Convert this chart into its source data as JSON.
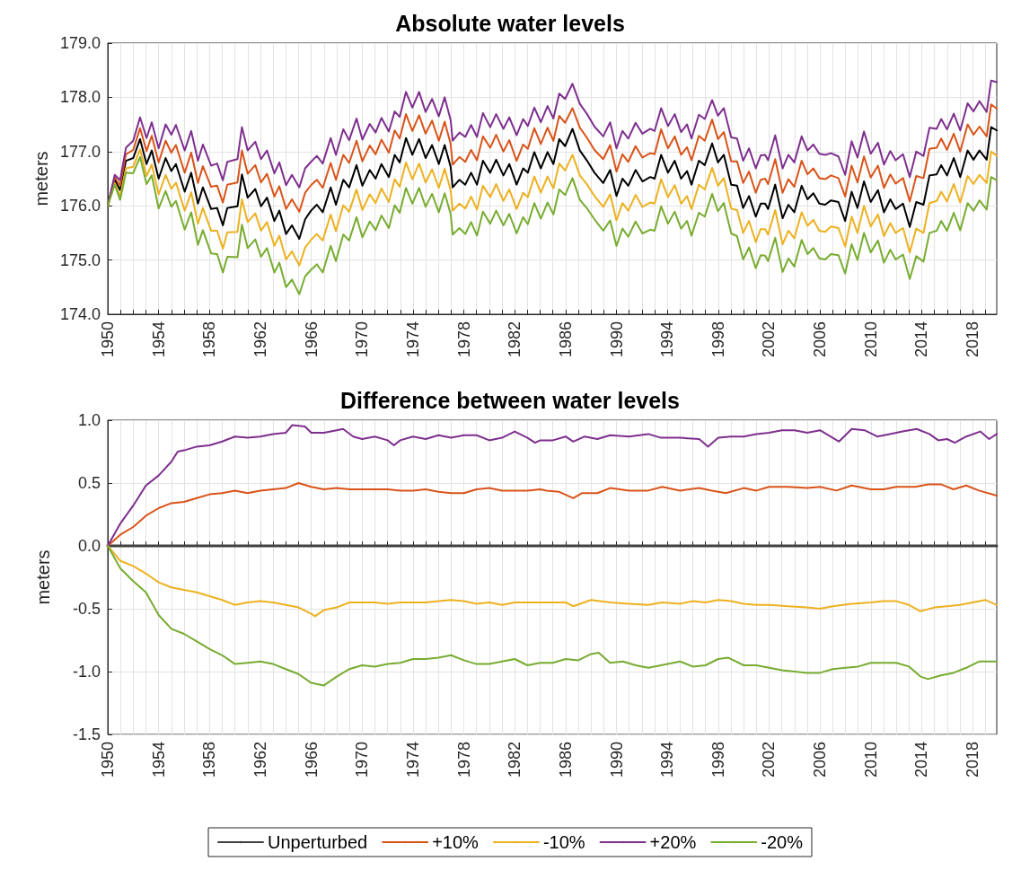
{
  "chart_data": [
    {
      "type": "line",
      "title": "Absolute water levels",
      "ylabel": "meters",
      "xlim": [
        1950,
        2019.9
      ],
      "ylim": [
        174,
        179
      ],
      "xticks": [
        1950,
        {
          "value": 1951,
          "label": null
        },
        {
          "value": 1952,
          "label": null
        },
        {
          "value": 1953,
          "label": null
        },
        1954,
        {
          "value": 1955,
          "label": null
        },
        {
          "value": 1956,
          "label": null
        },
        {
          "value": 1957,
          "label": null
        },
        1958,
        {
          "value": 1959,
          "label": null
        },
        {
          "value": 1960,
          "label": null
        },
        {
          "value": 1961,
          "label": null
        },
        1962,
        {
          "value": 1963,
          "label": null
        },
        {
          "value": 1964,
          "label": null
        },
        {
          "value": 1965,
          "label": null
        },
        1966,
        {
          "value": 1967,
          "label": null
        },
        {
          "value": 1968,
          "label": null
        },
        {
          "value": 1969,
          "label": null
        },
        1970,
        {
          "value": 1971,
          "label": null
        },
        {
          "value": 1972,
          "label": null
        },
        {
          "value": 1973,
          "label": null
        },
        1974,
        {
          "value": 1975,
          "label": null
        },
        {
          "value": 1976,
          "label": null
        },
        {
          "value": 1977,
          "label": null
        },
        1978,
        {
          "value": 1979,
          "label": null
        },
        {
          "value": 1980,
          "label": null
        },
        {
          "value": 1981,
          "label": null
        },
        1982,
        {
          "value": 1983,
          "label": null
        },
        {
          "value": 1984,
          "label": null
        },
        {
          "value": 1985,
          "label": null
        },
        1986,
        {
          "value": 1987,
          "label": null
        },
        {
          "value": 1988,
          "label": null
        },
        {
          "value": 1989,
          "label": null
        },
        1990,
        {
          "value": 1991,
          "label": null
        },
        {
          "value": 1992,
          "label": null
        },
        {
          "value": 1993,
          "label": null
        },
        1994,
        {
          "value": 1995,
          "label": null
        },
        {
          "value": 1996,
          "label": null
        },
        {
          "value": 1997,
          "label": null
        },
        1998,
        {
          "value": 1999,
          "label": null
        },
        {
          "value": 2000,
          "label": null
        },
        {
          "value": 2001,
          "label": null
        },
        2002,
        {
          "value": 2003,
          "label": null
        },
        {
          "value": 2004,
          "label": null
        },
        {
          "value": 2005,
          "label": null
        },
        2006,
        {
          "value": 2007,
          "label": null
        },
        {
          "value": 2008,
          "label": null
        },
        {
          "value": 2009,
          "label": null
        },
        2010,
        {
          "value": 2011,
          "label": null
        },
        {
          "value": 2012,
          "label": null
        },
        {
          "value": 2013,
          "label": null
        },
        2014,
        {
          "value": 2015,
          "label": null
        },
        {
          "value": 2016,
          "label": null
        },
        {
          "value": 2017,
          "label": null
        },
        2018,
        {
          "value": 2019,
          "label": null
        }
      ],
      "yticks": [
        {
          "value": 174,
          "label": "174.0"
        },
        {
          "value": 175,
          "label": "175.0"
        },
        {
          "value": 176,
          "label": "176.0"
        },
        {
          "value": 177,
          "label": "177.0"
        },
        {
          "value": 178,
          "label": "178.0"
        },
        {
          "value": 179,
          "label": "179.0"
        }
      ],
      "grid": true,
      "x": [
        1950,
        1950.55,
        1950.97,
        1951.43,
        1952,
        1952.54,
        1953.05,
        1953.46,
        1954,
        1954.55,
        1955,
        1955.36,
        1956.05,
        1956.56,
        1957.09,
        1957.48,
        1958.13,
        1958.6,
        1959.05,
        1959.4,
        1960.2,
        1960.55,
        1961,
        1961.6,
        1962.05,
        1962.52,
        1963.1,
        1963.49,
        1964.02,
        1964.48,
        1965.06,
        1965.52,
        1965.98,
        1966.44,
        1966.9,
        1967.53,
        1967.94,
        1968.52,
        1968.98,
        1969.56,
        1970.02,
        1970.6,
        1971.06,
        1971.52,
        1972.1,
        1972.56,
        1972.95,
        1973.45,
        1973.95,
        1974.48,
        1974.99,
        1975.5,
        1976.03,
        1976.49,
        1976.96,
        1977.12,
        1977.65,
        1978.11,
        1978.57,
        1979.03,
        1979.5,
        1980.07,
        1980.54,
        1981.11,
        1981.57,
        1982.15,
        1982.66,
        1983.03,
        1983.54,
        1984.05,
        1984.58,
        1985.04,
        1985.5,
        1985.96,
        1986.54,
        1987.12,
        1987.69,
        1988.27,
        1988.96,
        1989.5,
        1990,
        1990.47,
        1990.93,
        1991.5,
        1992.04,
        1992.66,
        1993,
        1993.51,
        1994.05,
        1994.58,
        1995.08,
        1995.55,
        1995.9,
        1996.48,
        1996.94,
        1997.52,
        1997.98,
        1998.44,
        1999.02,
        1999.48,
        1999.96,
        2000.42,
        2000.95,
        2001.34,
        2001.69,
        2001.92,
        2002.48,
        2003.06,
        2003.52,
        2003.98,
        2004.56,
        2005.02,
        2005.48,
        2005.95,
        2006.41,
        2006.87,
        2007.45,
        2007.98,
        2008.49,
        2008.95,
        2009.46,
        2009.99,
        2010.56,
        2011.03,
        2011.53,
        2011.95,
        2012.53,
        2013.06,
        2013.57,
        2014.14,
        2014.61,
        2015.18,
        2015.53,
        2015.99,
        2016.52,
        2017.03,
        2017.61,
        2018.07,
        2018.54,
        2019.11,
        2019.46,
        2019.9
      ],
      "series": [
        {
          "color": "#000000",
          "values": [
            176.0,
            176.48,
            176.29,
            176.83,
            176.88,
            177.23,
            176.77,
            177.02,
            176.5,
            176.88,
            176.64,
            176.77,
            176.26,
            176.61,
            176.04,
            176.34,
            175.94,
            175.96,
            175.64,
            175.96,
            175.99,
            176.58,
            176.15,
            176.31,
            175.99,
            176.15,
            175.72,
            175.91,
            175.48,
            175.64,
            175.39,
            175.75,
            175.91,
            176.02,
            175.88,
            176.34,
            176.02,
            176.48,
            176.34,
            176.75,
            176.37,
            176.66,
            176.5,
            176.77,
            176.53,
            176.94,
            176.8,
            177.25,
            176.94,
            177.23,
            176.88,
            177.12,
            176.77,
            177.12,
            176.72,
            176.34,
            176.48,
            176.39,
            176.61,
            176.39,
            176.83,
            176.61,
            176.85,
            176.56,
            176.77,
            176.39,
            176.69,
            176.61,
            176.99,
            176.69,
            176.99,
            176.77,
            177.23,
            177.1,
            177.42,
            177.02,
            176.83,
            176.61,
            176.42,
            176.66,
            176.18,
            176.5,
            176.37,
            176.66,
            176.45,
            176.53,
            176.5,
            176.94,
            176.61,
            176.83,
            176.5,
            176.64,
            176.39,
            176.83,
            176.75,
            177.15,
            176.8,
            176.94,
            176.39,
            176.37,
            175.96,
            176.18,
            175.8,
            176.04,
            176.04,
            175.94,
            176.39,
            175.77,
            176.02,
            175.88,
            176.37,
            176.12,
            176.23,
            176.04,
            176.02,
            176.1,
            176.07,
            175.72,
            176.26,
            175.96,
            176.45,
            176.07,
            176.29,
            175.88,
            176.12,
            175.94,
            176.04,
            175.61,
            176.07,
            176.02,
            176.56,
            176.58,
            176.75,
            176.56,
            176.88,
            176.53,
            177.02,
            176.85,
            177.02,
            176.85,
            177.45,
            177.39
          ]
        },
        {
          "color": "#d95319",
          "values": [
            176.0,
            176.53,
            176.38,
            176.95,
            177.03,
            177.43,
            177.01,
            177.29,
            176.8,
            177.2,
            176.98,
            177.12,
            176.61,
            176.98,
            176.42,
            176.73,
            176.35,
            176.37,
            176.06,
            176.39,
            176.43,
            177.02,
            176.59,
            176.75,
            176.43,
            176.59,
            176.17,
            176.36,
            175.94,
            176.12,
            175.89,
            176.24,
            176.38,
            176.48,
            176.33,
            176.79,
            176.48,
            176.94,
            176.79,
            177.2,
            176.82,
            177.11,
            176.95,
            177.22,
            176.98,
            177.39,
            177.24,
            177.69,
            177.38,
            177.67,
            177.33,
            177.57,
            177.2,
            177.55,
            177.14,
            176.76,
            176.9,
            176.81,
            177.03,
            176.84,
            177.28,
            177.07,
            177.31,
            177.0,
            177.21,
            176.83,
            177.13,
            177.05,
            177.43,
            177.14,
            177.44,
            177.2,
            177.66,
            177.53,
            177.8,
            177.44,
            177.25,
            177.03,
            176.86,
            177.12,
            176.63,
            176.95,
            176.81,
            177.1,
            176.89,
            176.97,
            176.95,
            177.41,
            177.06,
            177.28,
            176.94,
            177.08,
            176.84,
            177.29,
            177.2,
            177.59,
            177.23,
            177.36,
            176.82,
            176.82,
            176.42,
            176.63,
            176.24,
            176.48,
            176.5,
            176.4,
            176.86,
            176.24,
            176.49,
            176.35,
            176.83,
            176.58,
            176.69,
            176.51,
            176.49,
            176.56,
            176.51,
            176.17,
            176.74,
            176.43,
            176.91,
            176.52,
            176.74,
            176.33,
            176.58,
            176.41,
            176.51,
            176.08,
            176.55,
            176.51,
            177.05,
            177.07,
            177.24,
            177.03,
            177.33,
            177.0,
            177.5,
            177.31,
            177.46,
            177.28,
            177.87,
            177.79
          ]
        },
        {
          "color": "#edb120",
          "values": [
            176.0,
            176.42,
            176.17,
            176.69,
            176.72,
            177.04,
            176.55,
            176.76,
            176.21,
            176.57,
            176.31,
            176.43,
            175.91,
            176.25,
            175.67,
            175.96,
            175.54,
            175.54,
            175.21,
            175.51,
            175.52,
            176.12,
            175.7,
            175.86,
            175.54,
            175.7,
            175.26,
            175.45,
            175.01,
            175.16,
            174.9,
            175.23,
            175.37,
            175.48,
            175.36,
            175.84,
            175.53,
            176.01,
            175.89,
            176.3,
            175.92,
            176.21,
            176.05,
            176.32,
            176.07,
            176.49,
            176.35,
            176.8,
            176.49,
            176.78,
            176.43,
            176.67,
            176.33,
            176.68,
            176.29,
            175.91,
            176.04,
            175.95,
            176.17,
            175.93,
            176.37,
            176.16,
            176.4,
            176.09,
            176.3,
            175.94,
            176.24,
            176.16,
            176.54,
            176.24,
            176.54,
            176.32,
            176.78,
            176.65,
            176.94,
            176.56,
            176.39,
            176.18,
            175.98,
            176.21,
            175.73,
            176.05,
            175.91,
            176.2,
            175.98,
            176.06,
            176.04,
            176.49,
            176.16,
            176.38,
            176.04,
            176.18,
            175.94,
            176.39,
            176.3,
            176.7,
            176.37,
            176.51,
            175.95,
            175.92,
            175.5,
            175.72,
            175.33,
            175.57,
            175.57,
            175.47,
            175.92,
            175.29,
            175.54,
            175.4,
            175.88,
            175.63,
            175.74,
            175.54,
            175.52,
            175.62,
            175.59,
            175.25,
            175.8,
            175.5,
            176.0,
            175.62,
            175.84,
            175.44,
            175.68,
            175.5,
            175.59,
            175.14,
            175.58,
            175.5,
            176.05,
            176.09,
            176.26,
            176.08,
            176.4,
            176.06,
            176.55,
            176.4,
            176.57,
            176.42,
            177.0,
            176.92
          ]
        },
        {
          "color": "#7e2f8e",
          "values": [
            176.0,
            176.57,
            176.47,
            177.07,
            177.2,
            177.63,
            177.25,
            177.54,
            177.06,
            177.5,
            177.31,
            177.49,
            177.02,
            177.38,
            176.83,
            177.13,
            176.74,
            176.78,
            176.47,
            176.81,
            176.86,
            177.45,
            177.02,
            177.18,
            176.86,
            177.02,
            176.6,
            176.8,
            176.38,
            176.57,
            176.34,
            176.69,
            176.81,
            176.92,
            176.78,
            177.25,
            176.94,
            177.41,
            177.21,
            177.61,
            177.22,
            177.51,
            177.35,
            177.62,
            177.37,
            177.74,
            177.64,
            178.1,
            177.81,
            178.1,
            177.73,
            177.97,
            177.65,
            178.0,
            177.58,
            177.2,
            177.35,
            177.27,
            177.49,
            177.27,
            177.71,
            177.45,
            177.69,
            177.42,
            177.63,
            177.3,
            177.6,
            177.47,
            177.81,
            177.54,
            177.84,
            177.61,
            178.07,
            177.97,
            178.25,
            177.88,
            177.69,
            177.46,
            177.28,
            177.54,
            177.06,
            177.38,
            177.24,
            177.53,
            177.33,
            177.42,
            177.38,
            177.8,
            177.47,
            177.69,
            177.36,
            177.5,
            177.24,
            177.68,
            177.6,
            177.95,
            177.66,
            177.8,
            177.26,
            177.24,
            176.83,
            177.06,
            176.69,
            176.93,
            176.94,
            176.84,
            177.3,
            176.69,
            176.94,
            176.8,
            177.28,
            177.02,
            177.13,
            176.96,
            176.94,
            176.97,
            176.91,
            176.57,
            177.19,
            176.89,
            177.37,
            176.96,
            177.16,
            176.76,
            177.01,
            176.84,
            176.95,
            176.53,
            177.0,
            176.92,
            177.44,
            177.42,
            177.6,
            177.41,
            177.7,
            177.39,
            177.89,
            177.74,
            177.93,
            177.73,
            178.31,
            178.28
          ]
        },
        {
          "color": "#77ac30",
          "values": [
            176.0,
            176.39,
            176.11,
            176.61,
            176.6,
            176.9,
            176.4,
            176.56,
            175.95,
            176.27,
            175.98,
            176.09,
            175.56,
            175.88,
            175.28,
            175.55,
            175.12,
            175.11,
            174.77,
            175.06,
            175.05,
            175.65,
            175.22,
            175.38,
            175.06,
            175.22,
            174.77,
            174.95,
            174.5,
            174.64,
            174.37,
            174.7,
            174.82,
            174.92,
            174.77,
            175.26,
            174.98,
            175.47,
            175.36,
            175.79,
            175.42,
            175.71,
            175.55,
            175.82,
            175.59,
            176.01,
            175.87,
            176.33,
            176.04,
            176.33,
            175.98,
            176.22,
            175.88,
            176.23,
            175.85,
            175.47,
            175.59,
            175.48,
            175.7,
            175.45,
            175.89,
            175.67,
            175.91,
            175.64,
            175.85,
            175.49,
            175.79,
            175.66,
            176.05,
            175.76,
            176.06,
            175.84,
            176.3,
            176.2,
            176.51,
            176.11,
            175.95,
            175.75,
            175.54,
            175.73,
            175.26,
            175.58,
            175.43,
            175.71,
            175.49,
            175.56,
            175.54,
            175.99,
            175.67,
            175.89,
            175.58,
            175.72,
            175.45,
            175.87,
            175.8,
            176.22,
            175.9,
            176.05,
            175.49,
            175.44,
            175.01,
            175.23,
            174.85,
            175.09,
            175.08,
            174.98,
            175.41,
            174.78,
            175.03,
            174.88,
            175.37,
            175.11,
            175.22,
            175.03,
            175.01,
            175.11,
            175.09,
            174.75,
            175.29,
            175.0,
            175.5,
            175.14,
            175.36,
            174.95,
            175.19,
            175.01,
            175.1,
            174.65,
            175.07,
            174.97,
            175.5,
            175.54,
            175.72,
            175.54,
            175.87,
            175.55,
            176.05,
            175.91,
            176.1,
            175.93,
            176.53,
            176.47
          ]
        }
      ]
    },
    {
      "type": "line",
      "title": "Difference between water levels",
      "ylabel": "meters",
      "xlim": [
        1950,
        2019.9
      ],
      "ylim": [
        -1.5,
        1.0
      ],
      "xticks": [
        1950,
        {
          "value": 1951,
          "label": null
        },
        {
          "value": 1952,
          "label": null
        },
        {
          "value": 1953,
          "label": null
        },
        1954,
        {
          "value": 1955,
          "label": null
        },
        {
          "value": 1956,
          "label": null
        },
        {
          "value": 1957,
          "label": null
        },
        1958,
        {
          "value": 1959,
          "label": null
        },
        {
          "value": 1960,
          "label": null
        },
        {
          "value": 1961,
          "label": null
        },
        1962,
        {
          "value": 1963,
          "label": null
        },
        {
          "value": 1964,
          "label": null
        },
        {
          "value": 1965,
          "label": null
        },
        1966,
        {
          "value": 1967,
          "label": null
        },
        {
          "value": 1968,
          "label": null
        },
        {
          "value": 1969,
          "label": null
        },
        1970,
        {
          "value": 1971,
          "label": null
        },
        {
          "value": 1972,
          "label": null
        },
        {
          "value": 1973,
          "label": null
        },
        1974,
        {
          "value": 1975,
          "label": null
        },
        {
          "value": 1976,
          "label": null
        },
        {
          "value": 1977,
          "label": null
        },
        1978,
        {
          "value": 1979,
          "label": null
        },
        {
          "value": 1980,
          "label": null
        },
        {
          "value": 1981,
          "label": null
        },
        1982,
        {
          "value": 1983,
          "label": null
        },
        {
          "value": 1984,
          "label": null
        },
        {
          "value": 1985,
          "label": null
        },
        1986,
        {
          "value": 1987,
          "label": null
        },
        {
          "value": 1988,
          "label": null
        },
        {
          "value": 1989,
          "label": null
        },
        1990,
        {
          "value": 1991,
          "label": null
        },
        {
          "value": 1992,
          "label": null
        },
        {
          "value": 1993,
          "label": null
        },
        1994,
        {
          "value": 1995,
          "label": null
        },
        {
          "value": 1996,
          "label": null
        },
        {
          "value": 1997,
          "label": null
        },
        1998,
        {
          "value": 1999,
          "label": null
        },
        {
          "value": 2000,
          "label": null
        },
        {
          "value": 2001,
          "label": null
        },
        2002,
        {
          "value": 2003,
          "label": null
        },
        {
          "value": 2004,
          "label": null
        },
        {
          "value": 2005,
          "label": null
        },
        2006,
        {
          "value": 2007,
          "label": null
        },
        {
          "value": 2008,
          "label": null
        },
        {
          "value": 2009,
          "label": null
        },
        2010,
        {
          "value": 2011,
          "label": null
        },
        {
          "value": 2012,
          "label": null
        },
        {
          "value": 2013,
          "label": null
        },
        2014,
        {
          "value": 2015,
          "label": null
        },
        {
          "value": 2016,
          "label": null
        },
        {
          "value": 2017,
          "label": null
        },
        2018,
        {
          "value": 2019,
          "label": null
        }
      ],
      "yticks": [
        -1.5,
        {
          "value": -1,
          "label": "-1.0"
        },
        -0.5,
        {
          "value": 0,
          "label": "0.0"
        },
        0.5,
        {
          "value": 1,
          "label": "1.0"
        }
      ],
      "grid": true,
      "legend": "bottom",
      "series": [
        {
          "name": "Unperturbed",
          "color": "#404040",
          "x": [
            1950,
            2019.9
          ],
          "values": [
            0,
            0
          ]
        },
        {
          "name": "+10%",
          "color": "#d95319",
          "x": [
            1950,
            1951,
            1952,
            1953,
            1954,
            1955,
            1956,
            1957,
            1958,
            1959,
            1960,
            1961,
            1962,
            1963,
            1964,
            1965,
            1966,
            1967,
            1968,
            1969,
            1970,
            1971,
            1972,
            1973,
            1974,
            1975,
            1976,
            1977,
            1978,
            1979,
            1980,
            1981,
            1982,
            1983,
            1984,
            1984.5,
            1985.5,
            1986.6,
            1987.3,
            1988.5,
            1989.5,
            1991,
            1992.5,
            1993.6,
            1995,
            1996.5,
            1997.5,
            1998.6,
            2000,
            2001,
            2002,
            2003.5,
            2005,
            2006,
            2007.3,
            2008.5,
            2010,
            2011,
            2012,
            2013.5,
            2014.5,
            2015.5,
            2016.5,
            2017.5,
            2018.5,
            2019.9
          ],
          "values": [
            0,
            0.09,
            0.15,
            0.24,
            0.3,
            0.34,
            0.35,
            0.38,
            0.41,
            0.42,
            0.44,
            0.42,
            0.44,
            0.45,
            0.46,
            0.5,
            0.47,
            0.45,
            0.46,
            0.45,
            0.45,
            0.45,
            0.45,
            0.44,
            0.44,
            0.45,
            0.43,
            0.42,
            0.42,
            0.45,
            0.46,
            0.44,
            0.44,
            0.44,
            0.45,
            0.44,
            0.43,
            0.38,
            0.42,
            0.42,
            0.46,
            0.44,
            0.44,
            0.47,
            0.44,
            0.46,
            0.44,
            0.42,
            0.46,
            0.44,
            0.47,
            0.47,
            0.46,
            0.47,
            0.44,
            0.48,
            0.45,
            0.45,
            0.47,
            0.47,
            0.49,
            0.49,
            0.45,
            0.48,
            0.44,
            0.4
          ]
        },
        {
          "name": "-10%",
          "color": "#edb120",
          "x": [
            1950,
            1951,
            1952,
            1953,
            1954,
            1955,
            1956,
            1957,
            1958,
            1959,
            1960,
            1961,
            1962,
            1963,
            1964,
            1965,
            1966,
            1966.3,
            1967,
            1968,
            1969,
            1970,
            1971,
            1972,
            1973,
            1974,
            1975,
            1976,
            1977,
            1978,
            1979,
            1980,
            1981,
            1982,
            1983,
            1984,
            1985,
            1986,
            1986.6,
            1988,
            1989.5,
            1991,
            1992.5,
            1993.6,
            1995,
            1996,
            1997,
            1998,
            1999,
            2000,
            2001,
            2002,
            2003.5,
            2005,
            2006,
            2007,
            2008.5,
            2010,
            2011,
            2012,
            2013,
            2013.9,
            2015,
            2016,
            2017,
            2018,
            2019,
            2019.9
          ],
          "values": [
            0,
            -0.12,
            -0.16,
            -0.22,
            -0.29,
            -0.33,
            -0.35,
            -0.37,
            -0.4,
            -0.43,
            -0.47,
            -0.45,
            -0.44,
            -0.45,
            -0.47,
            -0.49,
            -0.54,
            -0.56,
            -0.51,
            -0.49,
            -0.45,
            -0.45,
            -0.45,
            -0.46,
            -0.45,
            -0.45,
            -0.45,
            -0.44,
            -0.43,
            -0.44,
            -0.46,
            -0.45,
            -0.47,
            -0.45,
            -0.45,
            -0.45,
            -0.45,
            -0.45,
            -0.48,
            -0.43,
            -0.45,
            -0.46,
            -0.47,
            -0.45,
            -0.46,
            -0.44,
            -0.45,
            -0.43,
            -0.44,
            -0.46,
            -0.47,
            -0.47,
            -0.48,
            -0.49,
            -0.5,
            -0.48,
            -0.46,
            -0.45,
            -0.44,
            -0.44,
            -0.47,
            -0.52,
            -0.49,
            -0.48,
            -0.47,
            -0.45,
            -0.43,
            -0.47
          ]
        },
        {
          "name": "+20%",
          "color": "#7e2f8e",
          "x": [
            1950,
            1951,
            1952,
            1953,
            1954,
            1955,
            1955.5,
            1956,
            1957,
            1958,
            1959,
            1960,
            1961,
            1962,
            1963,
            1964,
            1964.5,
            1965.5,
            1966,
            1967,
            1968,
            1968.5,
            1969.3,
            1970,
            1971,
            1972,
            1972.5,
            1973,
            1974,
            1975,
            1976,
            1977,
            1978,
            1979,
            1980,
            1981,
            1982,
            1983,
            1983.6,
            1984,
            1985,
            1986,
            1986.6,
            1987.5,
            1988.5,
            1989.5,
            1991,
            1992.5,
            1993.5,
            1995,
            1996.5,
            1997.2,
            1998,
            1999,
            2000,
            2001,
            2002,
            2003,
            2004,
            2005,
            2006,
            2007,
            2007.5,
            2008.5,
            2009.5,
            2010.5,
            2011.5,
            2012.5,
            2013.6,
            2014.6,
            2015.3,
            2016,
            2016.6,
            2017.5,
            2018.6,
            2019.3,
            2019.9
          ],
          "values": [
            0,
            0.18,
            0.32,
            0.48,
            0.56,
            0.67,
            0.75,
            0.76,
            0.79,
            0.8,
            0.83,
            0.87,
            0.86,
            0.87,
            0.89,
            0.9,
            0.96,
            0.95,
            0.9,
            0.9,
            0.92,
            0.93,
            0.87,
            0.85,
            0.87,
            0.84,
            0.8,
            0.84,
            0.87,
            0.85,
            0.88,
            0.86,
            0.88,
            0.88,
            0.84,
            0.86,
            0.91,
            0.86,
            0.82,
            0.84,
            0.84,
            0.87,
            0.83,
            0.87,
            0.85,
            0.88,
            0.87,
            0.89,
            0.86,
            0.86,
            0.85,
            0.79,
            0.86,
            0.87,
            0.87,
            0.89,
            0.9,
            0.92,
            0.92,
            0.9,
            0.92,
            0.86,
            0.83,
            0.93,
            0.92,
            0.87,
            0.89,
            0.91,
            0.93,
            0.89,
            0.84,
            0.85,
            0.82,
            0.87,
            0.91,
            0.85,
            0.89
          ]
        },
        {
          "name": "-20%",
          "color": "#77ac30",
          "x": [
            1950,
            1951,
            1952,
            1953,
            1954,
            1955,
            1956,
            1957,
            1958,
            1959,
            1960,
            1961,
            1962,
            1963,
            1964,
            1965,
            1966,
            1967,
            1968,
            1969,
            1970,
            1971,
            1972,
            1973,
            1974,
            1975,
            1976,
            1977,
            1978,
            1979,
            1980,
            1981,
            1982,
            1983,
            1984,
            1985,
            1986,
            1987,
            1988,
            1988.6,
            1989.5,
            1990.5,
            1991.5,
            1992.5,
            1993.5,
            1995,
            1996,
            1997,
            1998,
            1998.8,
            2000,
            2001,
            2002,
            2003,
            2004,
            2005,
            2006,
            2007,
            2008,
            2009,
            2010,
            2011,
            2012,
            2013,
            2013.9,
            2014.5,
            2015.5,
            2016.5,
            2017.5,
            2018.5,
            2019.9
          ],
          "values": [
            0,
            -0.18,
            -0.28,
            -0.37,
            -0.55,
            -0.66,
            -0.7,
            -0.76,
            -0.82,
            -0.87,
            -0.94,
            -0.93,
            -0.92,
            -0.94,
            -0.98,
            -1.02,
            -1.09,
            -1.11,
            -1.04,
            -0.98,
            -0.95,
            -0.96,
            -0.94,
            -0.93,
            -0.9,
            -0.9,
            -0.89,
            -0.87,
            -0.91,
            -0.94,
            -0.94,
            -0.92,
            -0.9,
            -0.95,
            -0.93,
            -0.93,
            -0.9,
            -0.91,
            -0.86,
            -0.85,
            -0.93,
            -0.92,
            -0.95,
            -0.97,
            -0.95,
            -0.92,
            -0.96,
            -0.95,
            -0.9,
            -0.89,
            -0.95,
            -0.95,
            -0.97,
            -0.99,
            -1.0,
            -1.01,
            -1.01,
            -0.98,
            -0.97,
            -0.96,
            -0.93,
            -0.93,
            -0.93,
            -0.96,
            -1.04,
            -1.06,
            -1.03,
            -1.01,
            -0.97,
            -0.92,
            -0.92
          ]
        }
      ]
    }
  ]
}
